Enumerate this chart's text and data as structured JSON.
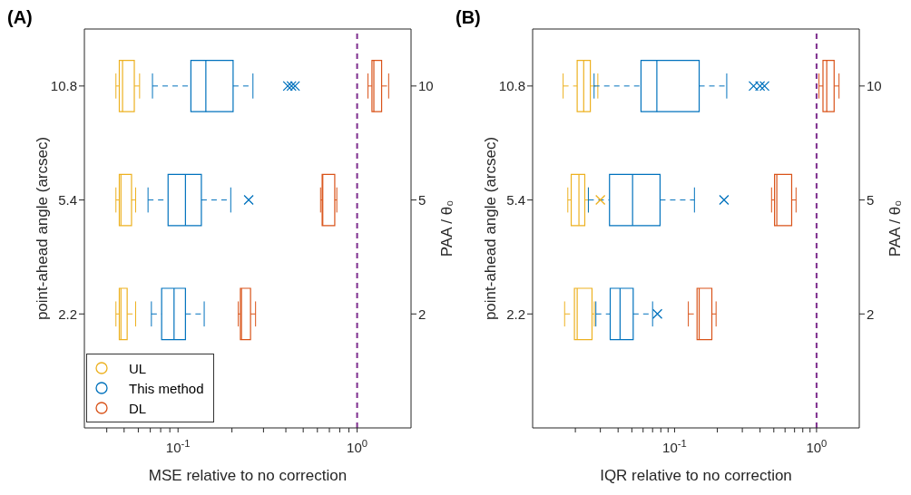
{
  "chart_data": [
    {
      "type": "box",
      "title": "(A)",
      "orientation": "horizontal",
      "log": "x",
      "legend": "bottom left",
      "xlabel": "MSE relative to no correction",
      "ylabel": "point-ahead angle (arcsec)",
      "y2label": "PAA / θ₀",
      "categories": [
        "10.8",
        "5.4",
        "2.2"
      ],
      "y2_categories": [
        "10",
        "5",
        "2"
      ],
      "xlim": [
        0.03,
        2
      ],
      "xticks": [
        {
          "value": 0.04,
          "label": null
        },
        {
          "value": 0.05,
          "label": null
        },
        {
          "value": 0.06,
          "label": null
        },
        {
          "value": 0.07,
          "label": null
        },
        {
          "value": 0.08,
          "label": null
        },
        {
          "value": 0.09,
          "label": null
        },
        {
          "value": 0.1,
          "label": "10$^{-1}$"
        },
        {
          "value": 0.2,
          "label": null
        },
        {
          "value": 0.3,
          "label": null
        },
        {
          "value": 0.4,
          "label": null
        },
        {
          "value": 0.5,
          "label": null
        },
        {
          "value": 0.6,
          "label": null
        },
        {
          "value": 0.7,
          "label": null
        },
        {
          "value": 0.8,
          "label": null
        },
        {
          "value": 0.9,
          "label": null
        },
        {
          "value": 1,
          "label": "10$^{0}$"
        }
      ],
      "ref_lines": [
        {
          "axis": "x",
          "value": 1,
          "label": null,
          "color": "#7e2f8e",
          "line_style": "dashed"
        }
      ],
      "series": [
        {
          "name": "UL",
          "color": "#edb120",
          "boxes": [
            {
              "low": 0.045,
              "q1": 0.047,
              "median": 0.049,
              "q3": 0.057,
              "high": 0.061
            },
            {
              "low": 0.045,
              "q1": 0.047,
              "median": 0.048,
              "q3": 0.055,
              "high": 0.058
            },
            {
              "low": 0.045,
              "q1": 0.047,
              "median": 0.048,
              "q3": 0.052,
              "high": 0.058
            }
          ]
        },
        {
          "name": "This method",
          "color": "#0072bd",
          "boxes": [
            {
              "low": 0.072,
              "q1": 0.118,
              "median": 0.143,
              "q3": 0.203,
              "high": 0.262,
              "outliers": [
                0.41,
                0.43,
                0.45
              ]
            },
            {
              "low": 0.068,
              "q1": 0.088,
              "median": 0.11,
              "q3": 0.135,
              "high": 0.197,
              "outliers": [
                0.248
              ]
            },
            {
              "low": 0.071,
              "q1": 0.081,
              "median": 0.095,
              "q3": 0.11,
              "high": 0.14
            }
          ]
        },
        {
          "name": "DL",
          "color": "#d95319",
          "boxes": [
            {
              "low": 1.15,
              "q1": 1.21,
              "median": 1.24,
              "q3": 1.37,
              "high": 1.5
            },
            {
              "low": 0.625,
              "q1": 0.638,
              "median": 0.643,
              "q3": 0.75,
              "high": 0.77
            },
            {
              "low": 0.217,
              "q1": 0.223,
              "median": 0.226,
              "q3": 0.254,
              "high": 0.271
            }
          ]
        }
      ]
    },
    {
      "type": "box",
      "title": "(B)",
      "orientation": "horizontal",
      "log": "x",
      "xlabel": "IQR relative to no correction",
      "ylabel": "point-ahead angle (arcsec)",
      "y2label": "PAA / θ₀",
      "categories": [
        "10.8",
        "5.4",
        "2.2"
      ],
      "y2_categories": [
        "10",
        "5",
        "2"
      ],
      "xlim": [
        0.01,
        2
      ],
      "xticks": [
        {
          "value": 0.02,
          "label": null
        },
        {
          "value": 0.03,
          "label": null
        },
        {
          "value": 0.04,
          "label": null
        },
        {
          "value": 0.05,
          "label": null
        },
        {
          "value": 0.06,
          "label": null
        },
        {
          "value": 0.07,
          "label": null
        },
        {
          "value": 0.08,
          "label": null
        },
        {
          "value": 0.09,
          "label": null
        },
        {
          "value": 0.1,
          "label": "10$^{-1}$"
        },
        {
          "value": 0.2,
          "label": null
        },
        {
          "value": 0.3,
          "label": null
        },
        {
          "value": 0.4,
          "label": null
        },
        {
          "value": 0.5,
          "label": null
        },
        {
          "value": 0.6,
          "label": null
        },
        {
          "value": 0.7,
          "label": null
        },
        {
          "value": 0.8,
          "label": null
        },
        {
          "value": 0.9,
          "label": null
        },
        {
          "value": 1,
          "label": "10$^{0}$"
        }
      ],
      "ref_lines": [
        {
          "axis": "x",
          "value": 1,
          "label": null,
          "color": "#7e2f8e",
          "line_style": "dashed"
        }
      ],
      "series": [
        {
          "color": "#edb120",
          "boxes": [
            {
              "low": 0.0164,
              "q1": 0.0206,
              "median": 0.0229,
              "q3": 0.0255,
              "high": 0.0288
            },
            {
              "low": 0.0177,
              "q1": 0.0187,
              "median": 0.0212,
              "q3": 0.0233,
              "high": 0.0247,
              "outliers": [
                0.03
              ]
            },
            {
              "low": 0.0168,
              "q1": 0.0197,
              "median": 0.0206,
              "q3": 0.0262,
              "high": 0.0272
            }
          ]
        },
        {
          "color": "#0072bd",
          "boxes": [
            {
              "low": 0.0271,
              "q1": 0.058,
              "median": 0.075,
              "q3": 0.149,
              "high": 0.233,
              "outliers": [
                0.36,
                0.4,
                0.43
              ]
            },
            {
              "low": 0.0247,
              "q1": 0.0348,
              "median": 0.0506,
              "q3": 0.079,
              "high": 0.138,
              "outliers": [
                0.223
              ]
            },
            {
              "low": 0.0279,
              "q1": 0.0352,
              "median": 0.0413,
              "q3": 0.0511,
              "high": 0.07,
              "outliers": [
                0.0757
              ]
            }
          ]
        },
        {
          "color": "#d95319",
          "boxes": [
            {
              "low": 1.04,
              "q1": 1.11,
              "median": 1.18,
              "q3": 1.33,
              "high": 1.44
            },
            {
              "low": 0.482,
              "q1": 0.506,
              "median": 0.525,
              "q3": 0.668,
              "high": 0.717
            },
            {
              "low": 0.125,
              "q1": 0.144,
              "median": 0.149,
              "q3": 0.183,
              "high": 0.196
            }
          ]
        }
      ]
    }
  ]
}
